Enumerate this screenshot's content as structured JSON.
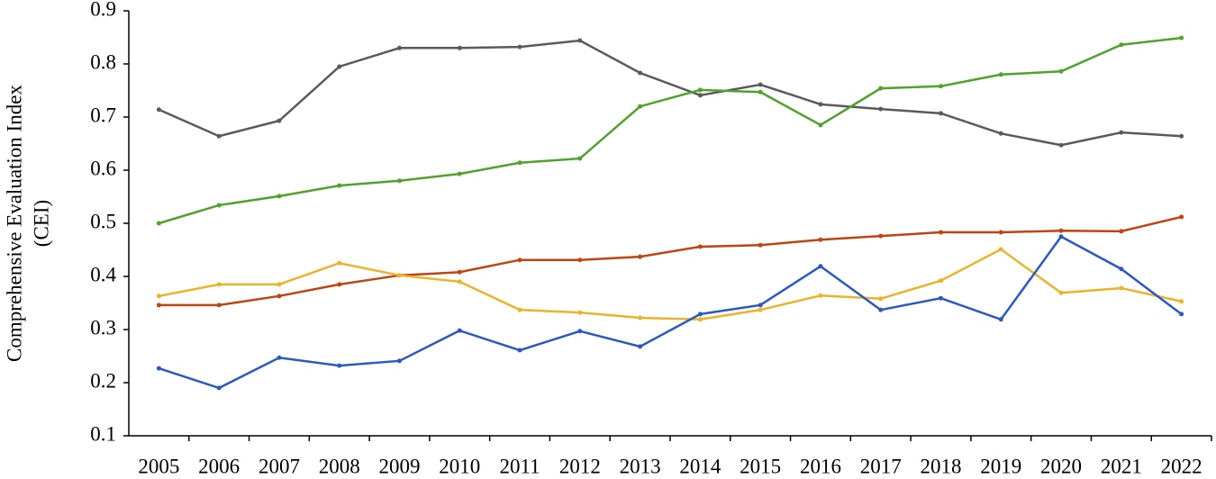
{
  "chart_data": {
    "type": "line",
    "ylabel": [
      "Comprehensive Evaluation Index",
      "(CEI)"
    ],
    "categories": [
      "2005",
      "2006",
      "2007",
      "2008",
      "2009",
      "2010",
      "2011",
      "2012",
      "2013",
      "2014",
      "2015",
      "2016",
      "2017",
      "2018",
      "2019",
      "2020",
      "2021",
      "2022"
    ],
    "ylim": [
      0.1,
      0.9
    ],
    "yticks": [
      0.1,
      0.2,
      0.3,
      0.4,
      0.5,
      0.6,
      0.7,
      0.8,
      0.9
    ],
    "series": [
      {
        "color": "#5a5a5a",
        "values": [
          0.714,
          0.664,
          0.693,
          0.795,
          0.83,
          0.83,
          0.832,
          0.844,
          0.783,
          0.741,
          0.761,
          0.724,
          0.715,
          0.707,
          0.669,
          0.647,
          0.671,
          0.664
        ]
      },
      {
        "color": "#4fa32a",
        "values": [
          0.5,
          0.534,
          0.551,
          0.571,
          0.58,
          0.593,
          0.614,
          0.622,
          0.72,
          0.751,
          0.747,
          0.685,
          0.754,
          0.758,
          0.78,
          0.786,
          0.836,
          0.849
        ]
      },
      {
        "color": "#c0440f",
        "values": [
          0.346,
          0.346,
          0.363,
          0.385,
          0.402,
          0.408,
          0.431,
          0.431,
          0.437,
          0.456,
          0.459,
          0.469,
          0.476,
          0.483,
          0.483,
          0.486,
          0.485,
          0.512
        ]
      },
      {
        "color": "#ecb32a",
        "values": [
          0.363,
          0.385,
          0.385,
          0.425,
          0.402,
          0.39,
          0.337,
          0.332,
          0.322,
          0.319,
          0.337,
          0.364,
          0.358,
          0.392,
          0.451,
          0.369,
          0.378,
          0.353
        ]
      },
      {
        "color": "#2b59c3",
        "values": [
          0.227,
          0.19,
          0.247,
          0.232,
          0.241,
          0.298,
          0.261,
          0.297,
          0.268,
          0.329,
          0.346,
          0.419,
          0.337,
          0.359,
          0.319,
          0.475,
          0.414,
          0.329
        ]
      }
    ]
  }
}
